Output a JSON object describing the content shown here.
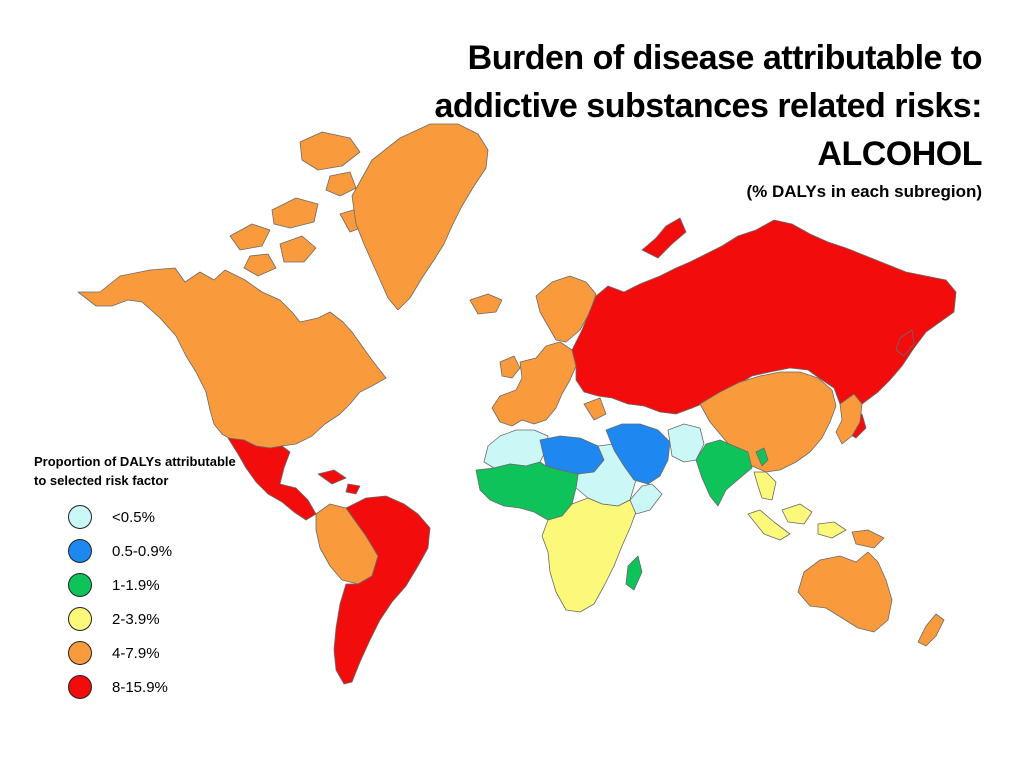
{
  "title_lines": [
    "Burden of disease attributable to",
    "addictive substances related risks:",
    "ALCOHOL"
  ],
  "subtitle": "(% DALYs in each subregion)",
  "legend": {
    "title_lines": [
      "Proportion of DALYs attributable",
      "to selected risk factor"
    ],
    "items": [
      {
        "label": "<0.5%",
        "color": "#ccf7f7"
      },
      {
        "label": "0.5-0.9%",
        "color": "#1e88f0"
      },
      {
        "label": "1-1.9%",
        "color": "#0ec35a"
      },
      {
        "label": "2-3.9%",
        "color": "#fbf87a"
      },
      {
        "label": "4-7.9%",
        "color": "#f99a3c"
      },
      {
        "label": "8-15.9%",
        "color": "#f20c0c"
      }
    ]
  },
  "regions": [
    {
      "name": "Canada and USA",
      "category": "4-7.9%"
    },
    {
      "name": "Greenland",
      "category": "4-7.9%"
    },
    {
      "name": "Western Europe",
      "category": "4-7.9%"
    },
    {
      "name": "Russia and Eastern Europe",
      "category": "8-15.9%"
    },
    {
      "name": "Mexico and Central America",
      "category": "8-15.9%"
    },
    {
      "name": "South America",
      "category": "8-15.9%"
    },
    {
      "name": "Andean region",
      "category": "4-7.9%"
    },
    {
      "name": "China and East Asia",
      "category": "4-7.9%"
    },
    {
      "name": "Australia and New Zealand",
      "category": "4-7.9%"
    },
    {
      "name": "Western and Central Africa",
      "category": "1-1.9%"
    },
    {
      "name": "North Africa",
      "category": "<0.5%"
    },
    {
      "name": "Libya and Egypt",
      "category": "0.5-0.9%"
    },
    {
      "name": "Middle East",
      "category": "0.5-0.9%"
    },
    {
      "name": "Central and Southern Africa",
      "category": "2-3.9%"
    },
    {
      "name": "Horn of Africa",
      "category": "<0.5%"
    },
    {
      "name": "South Asia",
      "category": "1-1.9%"
    },
    {
      "name": "Afghanistan and Pakistan",
      "category": "<0.5%"
    },
    {
      "name": "Southeast Asia",
      "category": "2-3.9%"
    },
    {
      "name": "Madagascar",
      "category": "1-1.9%"
    }
  ]
}
